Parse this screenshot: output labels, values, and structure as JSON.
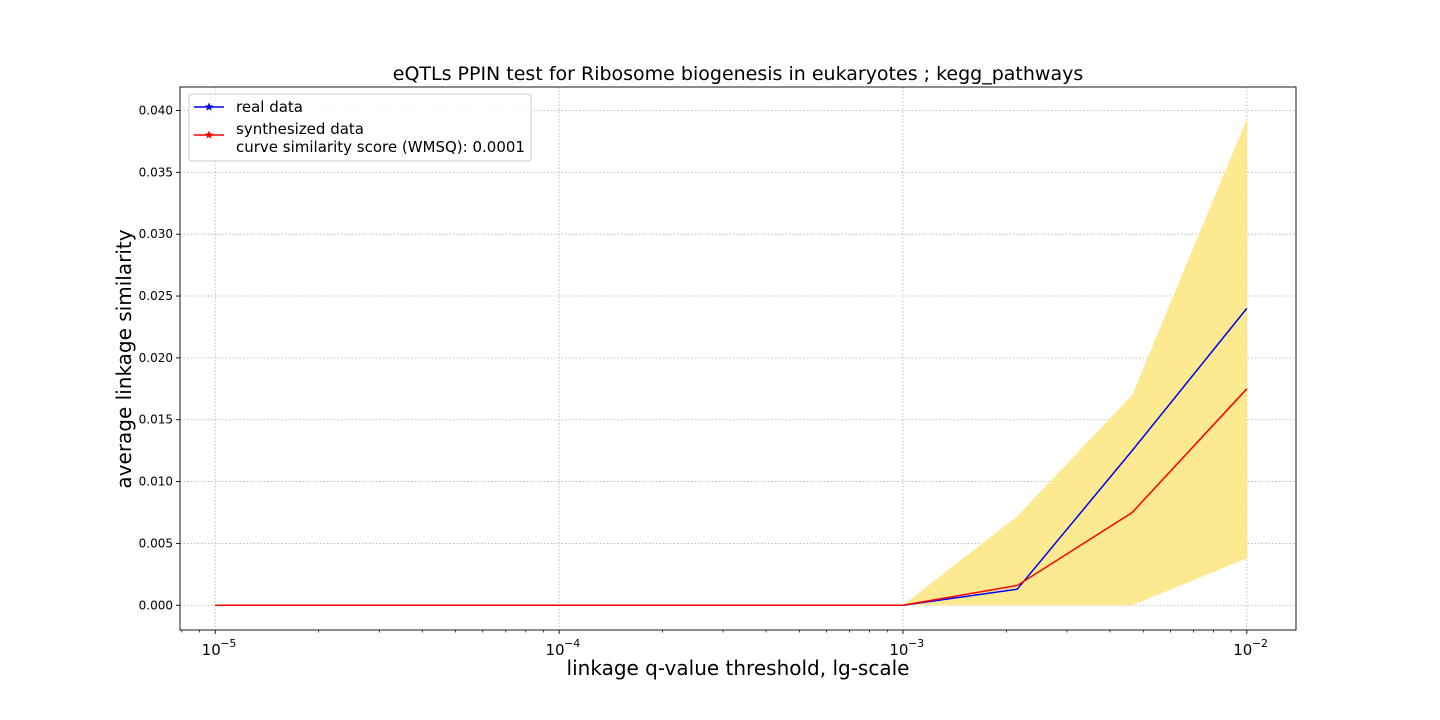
{
  "chart_data": {
    "type": "line",
    "title": "eQTLs PPIN test for Ribosome biogenesis in eukaryotes ; kegg_pathways",
    "xlabel": "linkage q-value threshold, lg-scale",
    "ylabel": "average linkage similarity",
    "xscale": "log",
    "xlim": [
      7.9e-06,
      0.0139
    ],
    "ylim": [
      -0.002,
      0.0419
    ],
    "grid": true,
    "legend_position": "upper-left",
    "x_ticks": [
      {
        "value": 1e-05,
        "base": "10",
        "exp": "−5"
      },
      {
        "value": 0.0001,
        "base": "10",
        "exp": "−4"
      },
      {
        "value": 0.001,
        "base": "10",
        "exp": "−3"
      },
      {
        "value": 0.01,
        "base": "10",
        "exp": "−2"
      }
    ],
    "y_ticks": [
      {
        "value": 0.0,
        "label": "0.000"
      },
      {
        "value": 0.005,
        "label": "0.005"
      },
      {
        "value": 0.01,
        "label": "0.010"
      },
      {
        "value": 0.015,
        "label": "0.015"
      },
      {
        "value": 0.02,
        "label": "0.020"
      },
      {
        "value": 0.025,
        "label": "0.025"
      },
      {
        "value": 0.03,
        "label": "0.030"
      },
      {
        "value": 0.035,
        "label": "0.035"
      },
      {
        "value": 0.04,
        "label": "0.040"
      }
    ],
    "x": [
      1e-05,
      2.15e-05,
      4.64e-05,
      0.0001,
      0.000215,
      0.000464,
      0.001,
      0.00215,
      0.00464,
      0.01
    ],
    "series": [
      {
        "name": "real data",
        "color": "#0000ff",
        "marker": "star",
        "values": [
          0,
          0,
          0,
          0,
          0,
          0,
          0,
          0.0013,
          0.0125,
          0.024
        ]
      },
      {
        "name": "synthesized data\ncurve similarity score (WMSQ): 0.0001",
        "color": "#ff0000",
        "marker": "star",
        "values": [
          0,
          0,
          0,
          0,
          0,
          0,
          0,
          0.0016,
          0.0075,
          0.0175
        ]
      }
    ],
    "band": {
      "color": "#fde98f",
      "lower": [
        0,
        0,
        0,
        0,
        0,
        0,
        0,
        0,
        0,
        0.0038
      ],
      "upper": [
        0,
        0,
        0,
        0,
        0,
        0,
        0,
        0.0072,
        0.017,
        0.0393
      ]
    },
    "legend": [
      {
        "lines": [
          "real data"
        ],
        "color": "#0000ff"
      },
      {
        "lines": [
          "synthesized data",
          "curve similarity score (WMSQ): 0.0001"
        ],
        "color": "#ff0000"
      }
    ]
  }
}
